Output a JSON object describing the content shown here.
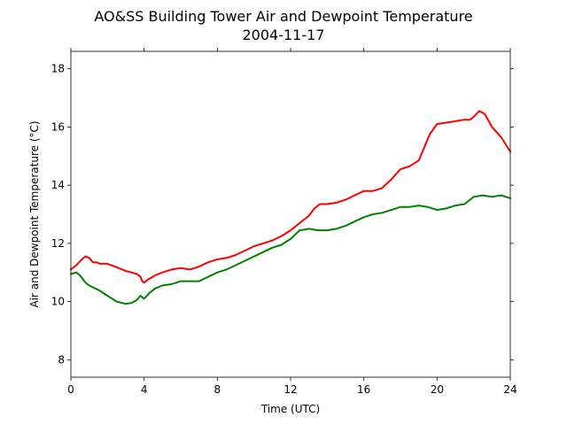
{
  "chart_data": {
    "type": "line",
    "title": "AO&SS Building Tower Air and Dewpoint Temperature",
    "subtitle": "2004-11-17",
    "xlabel": "Time (UTC)",
    "ylabel": "Air and Dewpoint Temperature (°C)",
    "xlim": [
      0,
      24
    ],
    "ylim": [
      7.4,
      18.6
    ],
    "xticks": [
      0,
      4,
      8,
      12,
      16,
      20,
      24
    ],
    "yticks": [
      8,
      10,
      12,
      14,
      16,
      18
    ],
    "grid": false,
    "legend": "none",
    "series": [
      {
        "color": "#ff0000",
        "x": [
          0,
          0.3,
          0.6,
          0.8,
          1.0,
          1.2,
          1.4,
          1.6,
          2.0,
          2.4,
          2.8,
          3.0,
          3.3,
          3.6,
          3.8,
          3.9,
          4.0,
          4.2,
          4.6,
          5.0,
          5.5,
          6.0,
          6.5,
          7.0,
          7.5,
          8.0,
          8.5,
          9.0,
          9.5,
          10.0,
          10.5,
          11.0,
          11.5,
          12.0,
          12.5,
          13.0,
          13.3,
          13.6,
          14.0,
          14.5,
          15.0,
          15.5,
          16.0,
          16.5,
          17.0,
          17.5,
          18.0,
          18.5,
          19.0,
          19.3,
          19.6,
          20.0,
          20.5,
          21.0,
          21.5,
          21.8,
          22.0,
          22.3,
          22.6,
          23.0,
          23.5,
          24.0
        ],
        "values": [
          11.1,
          11.25,
          11.45,
          11.55,
          11.5,
          11.35,
          11.35,
          11.3,
          11.3,
          11.2,
          11.1,
          11.05,
          11.0,
          10.95,
          10.85,
          10.7,
          10.65,
          10.75,
          10.9,
          11.0,
          11.1,
          11.15,
          11.1,
          11.2,
          11.35,
          11.45,
          11.5,
          11.6,
          11.75,
          11.9,
          12.0,
          12.1,
          12.25,
          12.45,
          12.7,
          12.95,
          13.2,
          13.35,
          13.35,
          13.4,
          13.5,
          13.65,
          13.8,
          13.8,
          13.9,
          14.2,
          14.55,
          14.65,
          14.85,
          15.3,
          15.75,
          16.1,
          16.15,
          16.2,
          16.25,
          16.25,
          16.35,
          16.55,
          16.45,
          16.0,
          15.65,
          15.15
        ]
      },
      {
        "color": "#008000",
        "x": [
          0,
          0.3,
          0.5,
          0.8,
          1.0,
          1.5,
          2.0,
          2.5,
          3.0,
          3.3,
          3.6,
          3.8,
          4.0,
          4.3,
          4.6,
          5.0,
          5.5,
          6.0,
          6.5,
          7.0,
          7.5,
          8.0,
          8.5,
          9.0,
          9.5,
          10.0,
          10.5,
          11.0,
          11.5,
          12.0,
          12.5,
          13.0,
          13.5,
          14.0,
          14.5,
          15.0,
          15.5,
          16.0,
          16.5,
          17.0,
          17.5,
          18.0,
          18.5,
          19.0,
          19.5,
          20.0,
          20.5,
          21.0,
          21.5,
          22.0,
          22.5,
          23.0,
          23.5,
          24.0
        ],
        "values": [
          10.95,
          11.0,
          10.9,
          10.65,
          10.55,
          10.4,
          10.2,
          10.0,
          9.92,
          9.95,
          10.05,
          10.2,
          10.1,
          10.3,
          10.45,
          10.55,
          10.6,
          10.7,
          10.7,
          10.7,
          10.85,
          11.0,
          11.1,
          11.25,
          11.4,
          11.55,
          11.7,
          11.85,
          11.95,
          12.15,
          12.45,
          12.5,
          12.45,
          12.45,
          12.5,
          12.6,
          12.75,
          12.9,
          13.0,
          13.05,
          13.15,
          13.25,
          13.25,
          13.3,
          13.25,
          13.15,
          13.2,
          13.3,
          13.35,
          13.6,
          13.65,
          13.6,
          13.65,
          13.55
        ]
      }
    ]
  }
}
